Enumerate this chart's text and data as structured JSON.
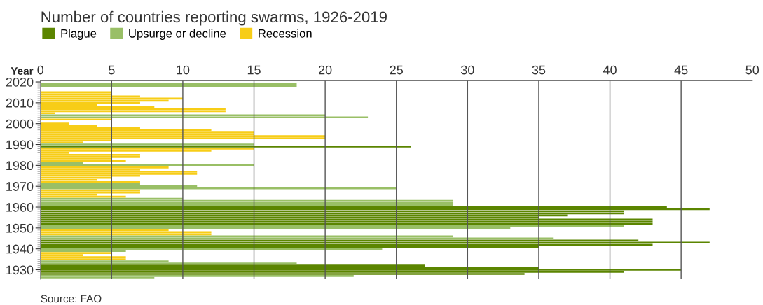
{
  "chart_data": {
    "type": "bar",
    "orientation": "horizontal",
    "title": "Number of countries reporting swarms, 1926-2019",
    "ylabel": "Year",
    "series": [
      {
        "name": "Plague",
        "color": "#5b8500",
        "x": [
          1989,
          1960,
          1959,
          1958,
          1957,
          1956,
          1955,
          1954,
          1953,
          1952,
          1944,
          1943,
          1942,
          1941,
          1932,
          1931,
          1930,
          1929,
          1928
        ],
        "values": [
          26,
          44,
          47,
          41,
          41,
          37,
          35,
          43,
          43,
          43,
          42,
          47,
          43,
          35,
          27,
          35,
          45,
          41,
          34
        ]
      },
      {
        "name": "Upsurge or decline",
        "color": "#99bf66",
        "x": [
          2019,
          2018,
          2004,
          2003,
          1990,
          1981,
          1980,
          1971,
          1970,
          1969,
          1964,
          1963,
          1962,
          1961,
          1951,
          1950,
          1946,
          1945,
          1940,
          1939,
          1934,
          1933,
          1927,
          1926
        ],
        "values": [
          18,
          18,
          20,
          23,
          15,
          3,
          15,
          7,
          11,
          25,
          10,
          29,
          29,
          29,
          41,
          33,
          29,
          36,
          24,
          6,
          9,
          18,
          22,
          8
        ]
      },
      {
        "name": "Recession",
        "color": "#f7cd17",
        "x": [
          2015,
          2014,
          2013,
          2012,
          2011,
          2010,
          2009,
          2008,
          2007,
          2006,
          2005,
          2002,
          2000,
          1999,
          1998,
          1997,
          1996,
          1995,
          1994,
          1993,
          1992,
          1991,
          1988,
          1987,
          1986,
          1985,
          1984,
          1983,
          1982,
          1979,
          1978,
          1977,
          1976,
          1975,
          1974,
          1973,
          1972,
          1968,
          1967,
          1966,
          1965,
          1949,
          1948,
          1947,
          1938,
          1937,
          1936,
          1935
        ],
        "values": [
          5,
          5,
          7,
          10,
          9,
          7,
          4,
          8,
          13,
          13,
          1,
          5,
          2,
          4,
          7,
          12,
          15,
          15,
          20,
          20,
          5,
          3,
          15,
          12,
          2,
          7,
          7,
          5,
          6,
          9,
          7,
          11,
          11,
          7,
          5,
          4,
          7,
          7,
          7,
          4,
          6,
          9,
          12,
          12,
          5,
          3,
          6,
          6
        ]
      }
    ],
    "xlim": [
      0,
      50
    ],
    "xticks": [
      0,
      5,
      10,
      15,
      20,
      25,
      30,
      35,
      40,
      45,
      50
    ],
    "ylim": [
      1925.5,
      2020.5
    ],
    "yticks": [
      1930,
      1940,
      1950,
      1960,
      1970,
      1980,
      1990,
      2000,
      2010,
      2020
    ],
    "grid": "x",
    "legend": "top left",
    "annotations": [
      "Source: FAO"
    ]
  }
}
